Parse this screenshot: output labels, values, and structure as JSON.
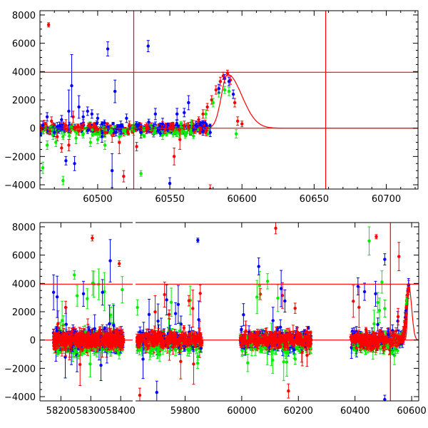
{
  "colors": {
    "red": "#ff0000",
    "green": "#00ee00",
    "blue": "#0000ff",
    "axis": "#000000"
  },
  "chart_data": [
    {
      "type": "scatter",
      "title": "",
      "xlabel": "",
      "ylabel": "",
      "xlim": [
        60460,
        60722
      ],
      "ylim": [
        -4300,
        8300
      ],
      "x_ticks": [
        60500,
        60550,
        60600,
        60650,
        60700
      ],
      "x_tick_labels": [
        "60500",
        "60550",
        "60600",
        "60650",
        "60700"
      ],
      "y_ticks": [
        -4000,
        -2000,
        0,
        2000,
        4000,
        6000,
        8000
      ],
      "y_tick_labels": [
        "−4000",
        "−2000",
        "0",
        "2000",
        "4000",
        "6000",
        "8000"
      ],
      "hlines": [
        3950,
        0
      ],
      "vlines": [
        60525,
        60658
      ],
      "model_curve": {
        "peak_mjd": 60590,
        "peak": 3800,
        "decay_days": 14
      },
      "series": [
        {
          "color": "red",
          "points": [
            [
              60463,
              300,
              250
            ],
            [
              60466,
              7300,
              150
            ],
            [
              60468,
              500,
              300
            ],
            [
              60472,
              -600,
              300
            ],
            [
              60475,
              -1400,
              300
            ],
            [
              60478,
              200,
              400
            ],
            [
              60480,
              -1200,
              400
            ],
            [
              60483,
              800,
              400
            ],
            [
              60487,
              -200,
              300
            ],
            [
              60490,
              300,
              300
            ],
            [
              60495,
              100,
              300
            ],
            [
              60500,
              -100,
              200
            ],
            [
              60505,
              -300,
              300
            ],
            [
              60510,
              -500,
              500
            ],
            [
              60515,
              -1000,
              800
            ],
            [
              60518,
              -3400,
              400
            ],
            [
              60522,
              200,
              300
            ],
            [
              60527,
              -1300,
              300
            ],
            [
              60530,
              100,
              250
            ],
            [
              60535,
              0,
              300
            ],
            [
              60540,
              -100,
              300
            ],
            [
              60545,
              200,
              250
            ],
            [
              60550,
              0,
              300
            ],
            [
              60553,
              -2000,
              600
            ],
            [
              60557,
              -800,
              700
            ],
            [
              60560,
              200,
              300
            ],
            [
              60563,
              100,
              300
            ],
            [
              60566,
              300,
              250
            ],
            [
              60570,
              600,
              200
            ],
            [
              60573,
              1000,
              300
            ],
            [
              60576,
              1500,
              250
            ],
            [
              60579,
              2000,
              300
            ],
            [
              60582,
              2700,
              300
            ],
            [
              60585,
              3300,
              300
            ],
            [
              60587,
              3700,
              250
            ],
            [
              60590,
              3900,
              200
            ],
            [
              60592,
              3400,
              300
            ],
            [
              60595,
              1800,
              300
            ],
            [
              60597,
              500,
              300
            ],
            [
              60600,
              300,
              200
            ],
            [
              60578,
              -4300,
              300
            ]
          ]
        },
        {
          "color": "green",
          "points": [
            [
              60462,
              -2800,
              400
            ],
            [
              60465,
              -1200,
              300
            ],
            [
              60469,
              -500,
              300
            ],
            [
              60471,
              -1000,
              300
            ],
            [
              60476,
              -3700,
              300
            ],
            [
              60480,
              -300,
              300
            ],
            [
              60485,
              -700,
              400
            ],
            [
              60490,
              -400,
              300
            ],
            [
              60495,
              -1000,
              300
            ],
            [
              60500,
              -800,
              300
            ],
            [
              60505,
              -1200,
              300
            ],
            [
              60510,
              -200,
              300
            ],
            [
              60515,
              -600,
              300
            ],
            [
              60525,
              -200,
              300
            ],
            [
              60530,
              -3200,
              200
            ],
            [
              60540,
              -100,
              300
            ],
            [
              60545,
              -500,
              300
            ],
            [
              60555,
              -300,
              300
            ],
            [
              60565,
              300,
              300
            ],
            [
              60575,
              1000,
              300
            ],
            [
              60580,
              1800,
              300
            ],
            [
              60584,
              2500,
              300
            ],
            [
              60588,
              2700,
              250
            ],
            [
              60591,
              2600,
              300
            ],
            [
              60596,
              -400,
              300
            ]
          ]
        },
        {
          "color": "blue",
          "points": [
            [
              60462,
              200,
              300
            ],
            [
              60465,
              800,
              300
            ],
            [
              60470,
              -300,
              300
            ],
            [
              60472,
              100,
              300
            ],
            [
              60475,
              600,
              300
            ],
            [
              60478,
              -2300,
              300
            ],
            [
              60480,
              1200,
              1500
            ],
            [
              60482,
              3000,
              2200
            ],
            [
              60484,
              -2500,
              500
            ],
            [
              60487,
              1500,
              800
            ],
            [
              60490,
              800,
              400
            ],
            [
              60493,
              1200,
              300
            ],
            [
              60496,
              1000,
              300
            ],
            [
              60500,
              700,
              300
            ],
            [
              60503,
              -600,
              400
            ],
            [
              60507,
              5600,
              500
            ],
            [
              60510,
              -3000,
              1200
            ],
            [
              60512,
              2600,
              800
            ],
            [
              60516,
              200,
              300
            ],
            [
              60520,
              700,
              300
            ],
            [
              60530,
              -300,
              400
            ],
            [
              60535,
              5800,
              400
            ],
            [
              60540,
              1000,
              400
            ],
            [
              60545,
              300,
              400
            ],
            [
              60550,
              -3900,
              400
            ],
            [
              60555,
              1000,
              400
            ],
            [
              60560,
              1100,
              300
            ],
            [
              60563,
              1800,
              500
            ],
            [
              60568,
              200,
              300
            ],
            [
              60573,
              -200,
              300
            ],
            [
              60578,
              -300,
              300
            ],
            [
              60584,
              2800,
              300
            ],
            [
              60588,
              3500,
              300
            ],
            [
              60591,
              3300,
              300
            ],
            [
              60594,
              2400,
              300
            ]
          ]
        }
      ]
    },
    {
      "type": "scatter",
      "title": "",
      "xlabel": "",
      "ylabel": "",
      "ylim": [
        -4300,
        8300
      ],
      "y_ticks": [
        -4000,
        -2000,
        0,
        2000,
        4000,
        6000,
        8000
      ],
      "y_tick_labels": [
        "−4000",
        "−2000",
        "0",
        "2000",
        "4000",
        "6000",
        "8000"
      ],
      "hlines": [
        3950,
        0
      ],
      "segments": [
        {
          "xlim": [
            58130,
            58440
          ],
          "x_ticks": [
            58200,
            58300,
            58400
          ],
          "x_tick_labels": [
            "58200",
            "58300",
            "58400"
          ],
          "data_range": [
            58175,
            58410
          ]
        },
        {
          "xlim": [
            59625,
            60625
          ],
          "x_ticks": [
            59800,
            60000,
            60200,
            60400,
            60600
          ],
          "x_tick_labels": [
            "59800",
            "60000",
            "60200",
            "60400",
            "60600"
          ],
          "data_ranges": [
            [
              59630,
              59860
            ],
            [
              59995,
              60245
            ],
            [
              60385,
              60590
            ]
          ]
        }
      ],
      "vlines": [
        60525
      ],
      "model_curve": {
        "peak_mjd": 60590,
        "peak": 3800,
        "decay_days": 14
      },
      "outliers": [
        {
          "color": "blue",
          "x": 59845,
          "y": 7050,
          "err": 150
        },
        {
          "color": "red",
          "x": 58305,
          "y": 7200,
          "err": 200
        },
        {
          "color": "red",
          "x": 60475,
          "y": 7300,
          "err": 150
        },
        {
          "color": "red",
          "x": 60120,
          "y": 7900,
          "err": 400
        },
        {
          "color": "green",
          "x": 58245,
          "y": 4600,
          "err": 300
        },
        {
          "color": "red",
          "x": 58395,
          "y": 5400,
          "err": 200
        },
        {
          "color": "blue",
          "x": 58365,
          "y": 5600,
          "err": 1500
        },
        {
          "color": "blue",
          "x": 60060,
          "y": 5200,
          "err": 600
        },
        {
          "color": "red",
          "x": 60555,
          "y": 5900,
          "err": 1000
        },
        {
          "color": "green",
          "x": 60450,
          "y": 7000,
          "err": 1000
        },
        {
          "color": "blue",
          "x": 60505,
          "y": 5700,
          "err": 400
        },
        {
          "color": "blue",
          "x": 59700,
          "y": -3700,
          "err": 800
        },
        {
          "color": "red",
          "x": 59640,
          "y": -3900,
          "err": 500
        },
        {
          "color": "red",
          "x": 60165,
          "y": -3600,
          "err": 500
        },
        {
          "color": "blue",
          "x": 60505,
          "y": -4200,
          "err": 300
        }
      ]
    }
  ]
}
